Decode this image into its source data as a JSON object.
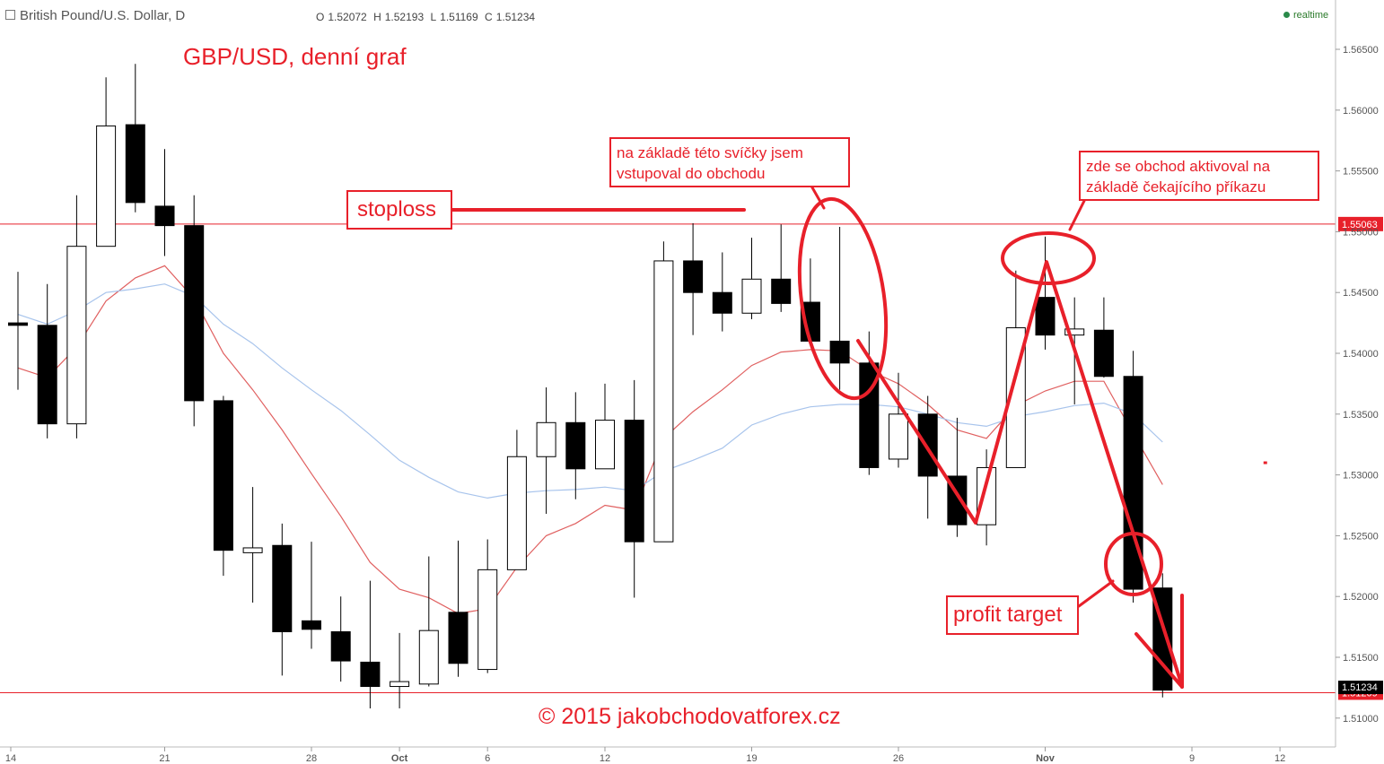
{
  "header": {
    "symbol": "British Pound/U.S. Dollar, D",
    "open_label": "O",
    "open": "1.52072",
    "high_label": "H",
    "high": "1.52193",
    "low_label": "L",
    "low": "1.51169",
    "close_label": "C",
    "close": "1.51234",
    "realtime": "realtime"
  },
  "annotations": {
    "title": "GBP/USD, denní graf",
    "stoploss": "stoploss",
    "entry_note_line1": "na základě této svíčky jsem",
    "entry_note_line2": "vstupoval do obchodu",
    "activation_note_line1": "zde se obchod aktivoval na",
    "activation_note_line2": "základě čekajícího příkazu",
    "profit_target": "profit target",
    "copyright": "© 2015 jakobchodovatforex.cz"
  },
  "colors": {
    "accent_red": "#e8202a",
    "ema_fast": "#e06060",
    "ema_slow": "#a8c4ec",
    "candle": "#000000",
    "axis_text": "#555555",
    "price_tag_dark": "#000000"
  },
  "chart_data": {
    "type": "candlestick",
    "ylim": [
      1.5084,
      1.5695
    ],
    "y_ticks": [
      "1.56500",
      "1.56000",
      "1.55500",
      "1.55000",
      "1.54500",
      "1.54000",
      "1.53500",
      "1.53000",
      "1.52500",
      "1.52000",
      "1.51500",
      "1.51000"
    ],
    "y_tick_values": [
      1.565,
      1.56,
      1.555,
      1.55,
      1.545,
      1.54,
      1.535,
      1.53,
      1.525,
      1.52,
      1.515,
      1.51
    ],
    "x_tick_labels": [
      {
        "label": "14",
        "slot": 0
      },
      {
        "label": "21",
        "slot": 5
      },
      {
        "label": "28",
        "slot": 10
      },
      {
        "label": "Oct",
        "slot": 13
      },
      {
        "label": "6",
        "slot": 16
      },
      {
        "label": "12",
        "slot": 20
      },
      {
        "label": "19",
        "slot": 25
      },
      {
        "label": "26",
        "slot": 30
      },
      {
        "label": "Nov",
        "slot": 35
      },
      {
        "label": "9",
        "slot": 40
      },
      {
        "label": "12",
        "slot": 43
      }
    ],
    "candles": [
      {
        "slot": 0,
        "o": 1.5425,
        "h": 1.5467,
        "l": 1.537,
        "c": 1.5423
      },
      {
        "slot": 1,
        "o": 1.5423,
        "h": 1.5457,
        "l": 1.533,
        "c": 1.5342
      },
      {
        "slot": 2,
        "o": 1.5342,
        "h": 1.553,
        "l": 1.533,
        "c": 1.5488
      },
      {
        "slot": 3,
        "o": 1.5488,
        "h": 1.5627,
        "l": 1.5488,
        "c": 1.5587
      },
      {
        "slot": 4,
        "o": 1.5588,
        "h": 1.5638,
        "l": 1.5516,
        "c": 1.5524
      },
      {
        "slot": 5,
        "o": 1.5521,
        "h": 1.5568,
        "l": 1.548,
        "c": 1.5505
      },
      {
        "slot": 6,
        "o": 1.5505,
        "h": 1.553,
        "l": 1.534,
        "c": 1.5361
      },
      {
        "slot": 7,
        "o": 1.5361,
        "h": 1.5365,
        "l": 1.5217,
        "c": 1.5238
      },
      {
        "slot": 8,
        "o": 1.5236,
        "h": 1.529,
        "l": 1.5195,
        "c": 1.524
      },
      {
        "slot": 9,
        "o": 1.5242,
        "h": 1.526,
        "l": 1.5135,
        "c": 1.5171
      },
      {
        "slot": 10,
        "o": 1.518,
        "h": 1.5245,
        "l": 1.5157,
        "c": 1.5173
      },
      {
        "slot": 11,
        "o": 1.5171,
        "h": 1.52,
        "l": 1.513,
        "c": 1.5147
      },
      {
        "slot": 12,
        "o": 1.5146,
        "h": 1.5213,
        "l": 1.5108,
        "c": 1.5126
      },
      {
        "slot": 13,
        "o": 1.5126,
        "h": 1.517,
        "l": 1.5108,
        "c": 1.513
      },
      {
        "slot": 14,
        "o": 1.5128,
        "h": 1.5233,
        "l": 1.5126,
        "c": 1.5172
      },
      {
        "slot": 15,
        "o": 1.5187,
        "h": 1.5246,
        "l": 1.5134,
        "c": 1.5145
      },
      {
        "slot": 16,
        "o": 1.514,
        "h": 1.5247,
        "l": 1.5137,
        "c": 1.5222
      },
      {
        "slot": 17,
        "o": 1.5222,
        "h": 1.5337,
        "l": 1.5222,
        "c": 1.5315
      },
      {
        "slot": 18,
        "o": 1.5315,
        "h": 1.5372,
        "l": 1.5268,
        "c": 1.5343
      },
      {
        "slot": 19,
        "o": 1.5343,
        "h": 1.5368,
        "l": 1.528,
        "c": 1.5305
      },
      {
        "slot": 20,
        "o": 1.5305,
        "h": 1.5375,
        "l": 1.5305,
        "c": 1.5345
      },
      {
        "slot": 21,
        "o": 1.5345,
        "h": 1.5378,
        "l": 1.5199,
        "c": 1.5245
      },
      {
        "slot": 22,
        "o": 1.5245,
        "h": 1.5492,
        "l": 1.5245,
        "c": 1.5476
      },
      {
        "slot": 23,
        "o": 1.5476,
        "h": 1.5507,
        "l": 1.5415,
        "c": 1.545
      },
      {
        "slot": 24,
        "o": 1.545,
        "h": 1.5483,
        "l": 1.5418,
        "c": 1.5433
      },
      {
        "slot": 25,
        "o": 1.5433,
        "h": 1.5495,
        "l": 1.5428,
        "c": 1.5461
      },
      {
        "slot": 26,
        "o": 1.5461,
        "h": 1.5506,
        "l": 1.5434,
        "c": 1.5441
      },
      {
        "slot": 27,
        "o": 1.5442,
        "h": 1.5478,
        "l": 1.541,
        "c": 1.541
      },
      {
        "slot": 28,
        "o": 1.541,
        "h": 1.5504,
        "l": 1.537,
        "c": 1.5392
      },
      {
        "slot": 29,
        "o": 1.5392,
        "h": 1.5418,
        "l": 1.53,
        "c": 1.5306
      },
      {
        "slot": 30,
        "o": 1.5313,
        "h": 1.5384,
        "l": 1.5306,
        "c": 1.535
      },
      {
        "slot": 31,
        "o": 1.535,
        "h": 1.5365,
        "l": 1.5264,
        "c": 1.5299
      },
      {
        "slot": 32,
        "o": 1.5299,
        "h": 1.5347,
        "l": 1.5249,
        "c": 1.5259
      },
      {
        "slot": 33,
        "o": 1.5259,
        "h": 1.5321,
        "l": 1.5242,
        "c": 1.5306
      },
      {
        "slot": 34,
        "o": 1.5306,
        "h": 1.5468,
        "l": 1.5306,
        "c": 1.5421
      },
      {
        "slot": 35,
        "o": 1.5446,
        "h": 1.5496,
        "l": 1.5403,
        "c": 1.5415
      },
      {
        "slot": 36,
        "o": 1.5415,
        "h": 1.5446,
        "l": 1.5358,
        "c": 1.542
      },
      {
        "slot": 37,
        "o": 1.5419,
        "h": 1.5446,
        "l": 1.538,
        "c": 1.5381
      },
      {
        "slot": 38,
        "o": 1.5381,
        "h": 1.5402,
        "l": 1.5195,
        "c": 1.5206
      },
      {
        "slot": 39,
        "o": 1.5207,
        "h": 1.5219,
        "l": 1.5117,
        "c": 1.5123
      }
    ],
    "series": [
      {
        "name": "",
        "color": "#e06060",
        "points": [
          [
            0,
            1.5388
          ],
          [
            1,
            1.538
          ],
          [
            2,
            1.5405
          ],
          [
            3,
            1.5443
          ],
          [
            4,
            1.5462
          ],
          [
            5,
            1.5472
          ],
          [
            6,
            1.5445
          ],
          [
            7,
            1.54
          ],
          [
            8,
            1.537
          ],
          [
            9,
            1.5337
          ],
          [
            10,
            1.5301
          ],
          [
            11,
            1.5266
          ],
          [
            12,
            1.5228
          ],
          [
            13,
            1.5206
          ],
          [
            14,
            1.5199
          ],
          [
            15,
            1.5186
          ],
          [
            16,
            1.519
          ],
          [
            17,
            1.5224
          ],
          [
            18,
            1.525
          ],
          [
            19,
            1.526
          ],
          [
            20,
            1.5275
          ],
          [
            21,
            1.5271
          ],
          [
            22,
            1.533
          ],
          [
            23,
            1.5352
          ],
          [
            24,
            1.537
          ],
          [
            25,
            1.539
          ],
          [
            26,
            1.5401
          ],
          [
            27,
            1.5403
          ],
          [
            28,
            1.5402
          ],
          [
            29,
            1.5386
          ],
          [
            30,
            1.5375
          ],
          [
            31,
            1.5358
          ],
          [
            32,
            1.5337
          ],
          [
            33,
            1.533
          ],
          [
            34,
            1.5357
          ],
          [
            35,
            1.5369
          ],
          [
            36,
            1.5377
          ],
          [
            37,
            1.5377
          ],
          [
            38,
            1.5334
          ],
          [
            39,
            1.5292
          ]
        ]
      },
      {
        "name": "",
        "color": "#a8c4ec",
        "points": [
          [
            0,
            1.5432
          ],
          [
            1,
            1.5424
          ],
          [
            2,
            1.5435
          ],
          [
            3,
            1.545
          ],
          [
            4,
            1.5453
          ],
          [
            5,
            1.5457
          ],
          [
            6,
            1.5447
          ],
          [
            7,
            1.5424
          ],
          [
            8,
            1.5408
          ],
          [
            9,
            1.5388
          ],
          [
            10,
            1.537
          ],
          [
            11,
            1.5353
          ],
          [
            12,
            1.5333
          ],
          [
            13,
            1.5312
          ],
          [
            14,
            1.5298
          ],
          [
            15,
            1.5286
          ],
          [
            16,
            1.5281
          ],
          [
            17,
            1.5285
          ],
          [
            18,
            1.5287
          ],
          [
            19,
            1.5288
          ],
          [
            20,
            1.529
          ],
          [
            21,
            1.5287
          ],
          [
            22,
            1.5303
          ],
          [
            23,
            1.5312
          ],
          [
            24,
            1.5322
          ],
          [
            25,
            1.5341
          ],
          [
            26,
            1.535
          ],
          [
            27,
            1.5356
          ],
          [
            28,
            1.5358
          ],
          [
            29,
            1.5358
          ],
          [
            30,
            1.5356
          ],
          [
            31,
            1.535
          ],
          [
            32,
            1.5343
          ],
          [
            33,
            1.534
          ],
          [
            34,
            1.5348
          ],
          [
            35,
            1.5352
          ],
          [
            36,
            1.5357
          ],
          [
            37,
            1.5359
          ],
          [
            38,
            1.535
          ],
          [
            39,
            1.5327
          ]
        ]
      }
    ],
    "horizontal_lines": [
      {
        "value": 1.55063,
        "label": "1.55063"
      },
      {
        "value": 1.51209,
        "label": "1.51209"
      }
    ],
    "last_price": {
      "value": 1.51234,
      "label": "1.51234"
    },
    "dot_marker": {
      "slot": 42.5,
      "value": 1.531
    }
  }
}
